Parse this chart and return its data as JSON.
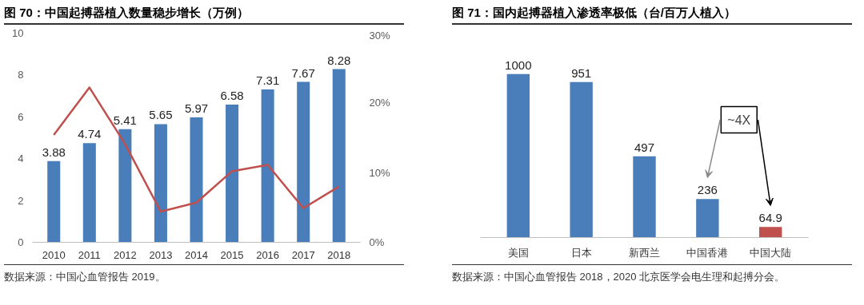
{
  "chart_data": [
    {
      "type": "bar",
      "title": "图 70：中国起搏器植入数量稳步增长（万例）",
      "categories": [
        "2010",
        "2011",
        "2012",
        "2013",
        "2014",
        "2015",
        "2016",
        "2017",
        "2018"
      ],
      "series": [
        {
          "type": "bar",
          "color": "#4a7ebb",
          "values": [
            3.88,
            4.74,
            5.41,
            5.65,
            5.97,
            6.58,
            7.31,
            7.67,
            8.28
          ],
          "value_labels": [
            "3.88",
            "4.74",
            "5.41",
            "5.65",
            "5.97",
            "6.58",
            "7.31",
            "7.67",
            "8.28"
          ]
        },
        {
          "type": "line",
          "axis": "y2",
          "color": "#c0504d",
          "values": [
            15.4,
            22.2,
            14.1,
            4.4,
            5.7,
            10.2,
            11.1,
            4.9,
            8.0
          ]
        }
      ],
      "ylim": [
        0,
        10
      ],
      "yticks": [
        0,
        2,
        4,
        6,
        8,
        10
      ],
      "y2lim": [
        0,
        30
      ],
      "y2ticks": [
        {
          "value": 0,
          "label": "0%"
        },
        {
          "value": 10,
          "label": "10%"
        },
        {
          "value": 20,
          "label": "20%"
        },
        {
          "value": 30,
          "label": "30%"
        }
      ],
      "grid": false,
      "annotations": [
        "数据来源：中国心血管报告 2019。"
      ]
    },
    {
      "type": "bar",
      "title": "图 71：国内起搏器植入渗透率极低（台/百万人植入）",
      "categories": [
        "美国",
        "日本",
        "新西兰",
        "中国香港",
        "中国大陆"
      ],
      "values": [
        1000,
        951,
        497,
        236,
        64.9
      ],
      "colors": [
        "#4a7ebb",
        "#4a7ebb",
        "#4a7ebb",
        "#4a7ebb",
        "#c0504d"
      ],
      "data_labels": true,
      "tick_labels": "x",
      "grid": false,
      "annotations": [
        "~4X",
        "数据来源：中国心血管报告 2018，2020 北京医学会电生理和起搏分会。"
      ]
    }
  ]
}
